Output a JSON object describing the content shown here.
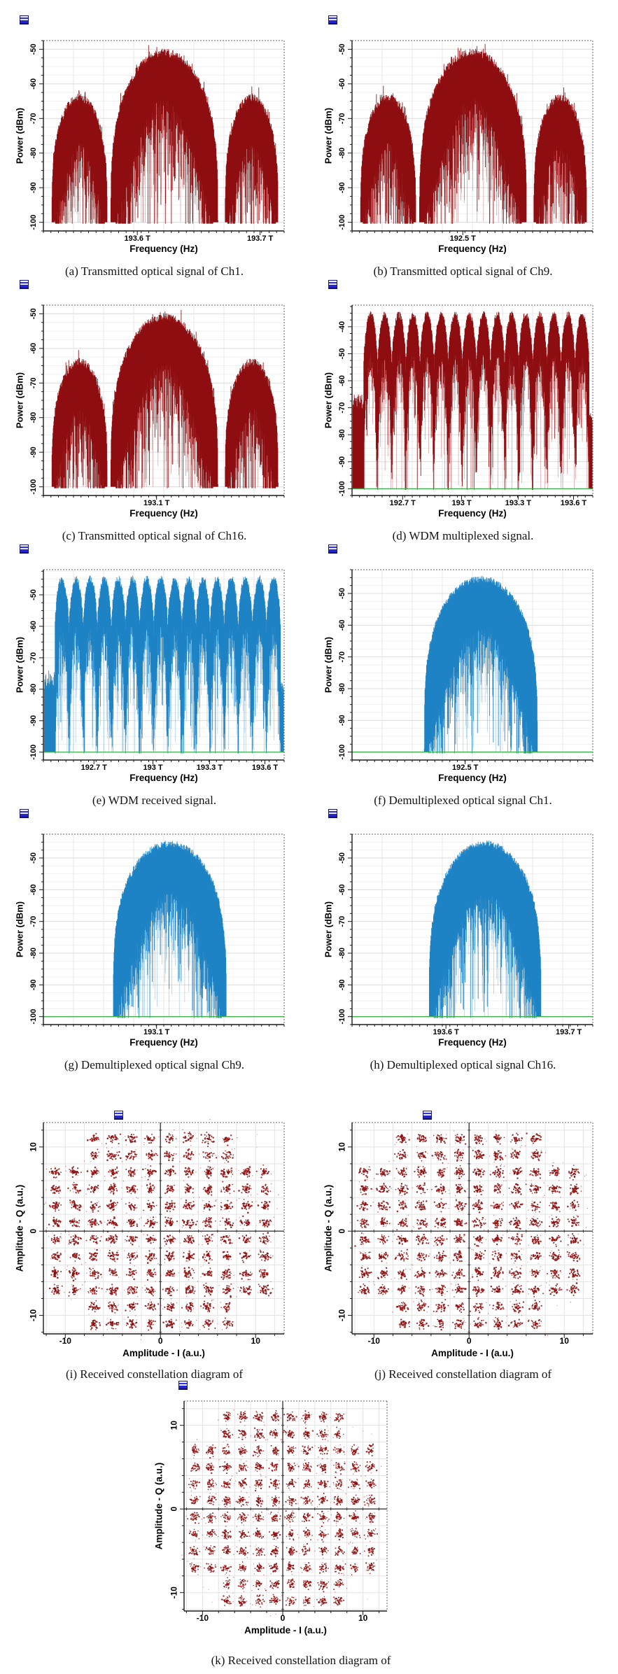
{
  "page": {
    "background": "#ffffff",
    "caption_font_color": "#141414",
    "axis_color": "#1a1a1a",
    "grid_major_color": "#dcdcdc",
    "grid_minor_color": "#f0f0f0",
    "green_line_color": "#3db04c",
    "window_icon_color": "#2626c8"
  },
  "chart_data": [
    {
      "id": "a",
      "type": "area",
      "plot_kind": "optical-spectrum",
      "caption": "(a) Transmitted optical signal of Ch1.",
      "xlabel": "Frequency (Hz)",
      "ylabel": "Power (dBm)",
      "y_ticks": [
        -50,
        -60,
        -70,
        -80,
        -90,
        -100
      ],
      "y_range": [
        -102.5,
        -47.5
      ],
      "x_ticks": [
        {
          "label": "193.6 T",
          "pos": 0.39
        },
        {
          "label": "193.7 T",
          "pos": 0.9
        }
      ],
      "color": "#8e0d10",
      "green_line": false,
      "seed": 101,
      "shape": {
        "kind": "lobes",
        "lobes": [
          {
            "x0": 0.035,
            "x1": 0.265,
            "peak_dbm": -64
          },
          {
            "x0": 0.28,
            "x1": 0.725,
            "peak_dbm": -51
          },
          {
            "x0": 0.755,
            "x1": 0.975,
            "peak_dbm": -64
          }
        ]
      }
    },
    {
      "id": "b",
      "type": "area",
      "plot_kind": "optical-spectrum",
      "caption": "(b) Transmitted optical signal of Ch9.",
      "xlabel": "Frequency (Hz)",
      "ylabel": "Power (dBm)",
      "y_ticks": [
        -50,
        -60,
        -70,
        -80,
        -90,
        -100
      ],
      "y_range": [
        -102.5,
        -47.5
      ],
      "x_ticks": [
        {
          "label": "192.5 T",
          "pos": 0.46
        }
      ],
      "color": "#8e0d10",
      "green_line": false,
      "seed": 202,
      "shape": {
        "kind": "lobes",
        "lobes": [
          {
            "x0": 0.035,
            "x1": 0.265,
            "peak_dbm": -64
          },
          {
            "x0": 0.28,
            "x1": 0.725,
            "peak_dbm": -51
          },
          {
            "x0": 0.755,
            "x1": 0.975,
            "peak_dbm": -64
          }
        ]
      }
    },
    {
      "id": "c",
      "type": "area",
      "plot_kind": "optical-spectrum",
      "caption": "(c) Transmitted optical signal of Ch16.",
      "xlabel": "Frequency (Hz)",
      "ylabel": "Power (dBm)",
      "y_ticks": [
        -50,
        -60,
        -70,
        -80,
        -90,
        -100
      ],
      "y_range": [
        -102.5,
        -47.5
      ],
      "x_ticks": [
        {
          "label": "193.1 T",
          "pos": 0.47
        }
      ],
      "color": "#8e0d10",
      "green_line": false,
      "seed": 303,
      "shape": {
        "kind": "lobes",
        "lobes": [
          {
            "x0": 0.035,
            "x1": 0.265,
            "peak_dbm": -64
          },
          {
            "x0": 0.28,
            "x1": 0.725,
            "peak_dbm": -51
          },
          {
            "x0": 0.755,
            "x1": 0.975,
            "peak_dbm": -64
          }
        ]
      }
    },
    {
      "id": "d",
      "type": "area",
      "plot_kind": "optical-spectrum",
      "caption": "(d) WDM multiplexed signal.",
      "xlabel": "Frequency (Hz)",
      "ylabel": "Power (dBm)",
      "y_ticks": [
        -40,
        -50,
        -60,
        -70,
        -80,
        -90,
        -100
      ],
      "y_range": [
        -102.5,
        -32
      ],
      "x_ticks": [
        {
          "label": "192.7 T",
          "pos": 0.21
        },
        {
          "label": "193 T",
          "pos": 0.455
        },
        {
          "label": "193.3 T",
          "pos": 0.69
        },
        {
          "label": "193.6 T",
          "pos": 0.92
        }
      ],
      "color": "#8e0d10",
      "green_line": true,
      "seed": 404,
      "shape": {
        "kind": "comb",
        "x0": 0.048,
        "x1": 0.985,
        "peaks": 16,
        "peak_dbm": -35.5,
        "valley_dbm": -57,
        "edge_left_top": -68,
        "edge_right_top": -74
      }
    },
    {
      "id": "e",
      "type": "area",
      "plot_kind": "optical-spectrum",
      "caption": "(e) WDM received signal.",
      "xlabel": "Frequency (Hz)",
      "ylabel": "Power (dBm)",
      "y_ticks": [
        -50,
        -60,
        -70,
        -80,
        -90,
        -100
      ],
      "y_range": [
        -102.5,
        -42
      ],
      "x_ticks": [
        {
          "label": "192.7 T",
          "pos": 0.21
        },
        {
          "label": "193 T",
          "pos": 0.455
        },
        {
          "label": "193.3 T",
          "pos": 0.69
        },
        {
          "label": "193.6 T",
          "pos": 0.92
        }
      ],
      "color": "#1d83c4",
      "green_line": true,
      "seed": 505,
      "shape": {
        "kind": "comb",
        "x0": 0.048,
        "x1": 0.985,
        "peaks": 16,
        "peak_dbm": -45,
        "valley_dbm": -62.5,
        "edge_left_top": -77,
        "edge_right_top": -80
      }
    },
    {
      "id": "f",
      "type": "area",
      "plot_kind": "optical-spectrum",
      "caption": "(f) Demultiplexed optical signal Ch1.",
      "xlabel": "Frequency (Hz)",
      "ylabel": "Power (dBm)",
      "y_ticks": [
        -50,
        -60,
        -70,
        -80,
        -90,
        -100
      ],
      "y_range": [
        -102.5,
        -42.5
      ],
      "x_ticks": [
        {
          "label": "192.5 T",
          "pos": 0.47
        }
      ],
      "color": "#1d83c4",
      "green_line": true,
      "seed": 606,
      "shape": {
        "kind": "dome",
        "x0": 0.3,
        "x1": 0.77,
        "peak_dbm": -45.5
      }
    },
    {
      "id": "g",
      "type": "area",
      "plot_kind": "optical-spectrum",
      "caption": "(g) Demultiplexed optical signal Ch9.",
      "xlabel": "Frequency (Hz)",
      "ylabel": "Power (dBm)",
      "y_ticks": [
        -50,
        -60,
        -70,
        -80,
        -90,
        -100
      ],
      "y_range": [
        -102.5,
        -42.5
      ],
      "x_ticks": [
        {
          "label": "193.1 T",
          "pos": 0.47
        }
      ],
      "color": "#1d83c4",
      "green_line": true,
      "seed": 707,
      "shape": {
        "kind": "dome",
        "x0": 0.29,
        "x1": 0.76,
        "peak_dbm": -45.5
      }
    },
    {
      "id": "h",
      "type": "area",
      "plot_kind": "optical-spectrum",
      "caption": "(h) Demultiplexed optical signal Ch16.",
      "xlabel": "Frequency (Hz)",
      "ylabel": "Power (dBm)",
      "y_ticks": [
        -50,
        -60,
        -70,
        -80,
        -90,
        -100
      ],
      "y_range": [
        -102.5,
        -42.5
      ],
      "x_ticks": [
        {
          "label": "193.6 T",
          "pos": 0.39
        },
        {
          "label": "193.7 T",
          "pos": 0.9
        }
      ],
      "color": "#1d83c4",
      "green_line": true,
      "seed": 808,
      "shape": {
        "kind": "dome",
        "x0": 0.32,
        "x1": 0.785,
        "peak_dbm": -45.5
      }
    },
    {
      "id": "i",
      "type": "scatter",
      "plot_kind": "constellation",
      "caption": "(i) Received constellation diagram of",
      "xlabel": "Amplitude - I (a.u.)",
      "ylabel": "Amplitude - Q (a.u.)",
      "x_ticks": [
        -10,
        0,
        10
      ],
      "y_ticks": [
        -10,
        0,
        10
      ],
      "xlim": [
        -12.3,
        13.0
      ],
      "ylim": [
        -12.2,
        12.9
      ],
      "modulation": "128-QAM cross (12x12 grid of symbol clusters minus 2x2 corners)",
      "levels": [
        -11,
        -9,
        -7,
        -5,
        -3,
        -1,
        1,
        3,
        5,
        7,
        9,
        11
      ],
      "cluster_sigma": 0.27,
      "color": "#991111",
      "seed": 909
    },
    {
      "id": "j",
      "type": "scatter",
      "plot_kind": "constellation",
      "caption": "(j) Received constellation diagram of",
      "xlabel": "Amplitude - I (a.u.)",
      "ylabel": "Amplitude - Q (a.u.)",
      "x_ticks": [
        -10,
        0,
        10
      ],
      "y_ticks": [
        -10,
        0,
        10
      ],
      "xlim": [
        -12.3,
        13.0
      ],
      "ylim": [
        -12.2,
        12.9
      ],
      "modulation": "128-QAM cross (12x12 grid of symbol clusters minus 2x2 corners)",
      "levels": [
        -11,
        -9,
        -7,
        -5,
        -3,
        -1,
        1,
        3,
        5,
        7,
        9,
        11
      ],
      "cluster_sigma": 0.27,
      "color": "#991111",
      "seed": 1010
    },
    {
      "id": "k",
      "type": "scatter",
      "plot_kind": "constellation",
      "caption": "(k) Received constellation diagram of",
      "xlabel": "Amplitude - I (a.u.)",
      "ylabel": "Amplitude - Q (a.u.)",
      "x_ticks": [
        -10,
        0,
        10
      ],
      "y_ticks": [
        -10,
        0,
        10
      ],
      "xlim": [
        -12.3,
        13.0
      ],
      "ylim": [
        -12.2,
        12.9
      ],
      "modulation": "128-QAM cross (12x12 grid of symbol clusters minus 2x2 corners)",
      "levels": [
        -11,
        -9,
        -7,
        -5,
        -3,
        -1,
        1,
        3,
        5,
        7,
        9,
        11
      ],
      "cluster_sigma": 0.27,
      "color": "#991111",
      "seed": 1111
    }
  ]
}
